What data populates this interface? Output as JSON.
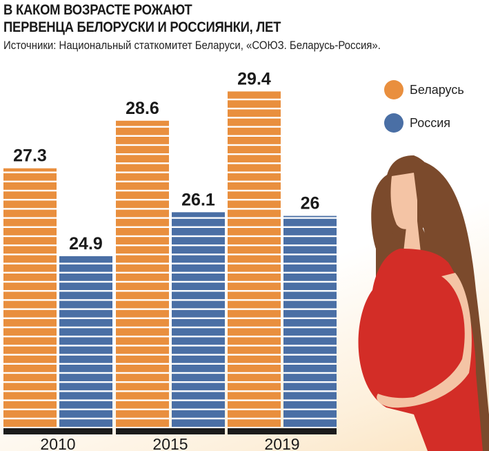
{
  "chart_data": {
    "type": "bar",
    "title": "В КАКОМ ВОЗРАСТЕ РОЖАЮТ ПЕРВЕНЦА БЕЛОРУСКИ И РОССИЯНКИ, ЛЕТ",
    "title_lines": [
      "В КАКОМ ВОЗРАСТЕ РОЖАЮТ",
      "ПЕРВЕНЦА БЕЛОРУСКИ И РОССИЯНКИ, ЛЕТ"
    ],
    "subtitle": "Источники: Национальный статкомитет Беларуси, «СОЮЗ. Беларусь-Россия».",
    "categories": [
      "2010",
      "2015",
      "2019"
    ],
    "series": [
      {
        "name": "Беларусь",
        "color": "#E98F3E",
        "values": [
          27.3,
          28.6,
          29.4
        ],
        "labels": [
          "27.3",
          "28.6",
          "29.4"
        ]
      },
      {
        "name": "Россия",
        "color": "#4A6FA5",
        "values": [
          24.9,
          26.1,
          26
        ],
        "labels": [
          "24.9",
          "26.1",
          "26"
        ]
      }
    ],
    "xlabel": "",
    "ylabel": "",
    "grid": false,
    "legend": "top-right"
  }
}
